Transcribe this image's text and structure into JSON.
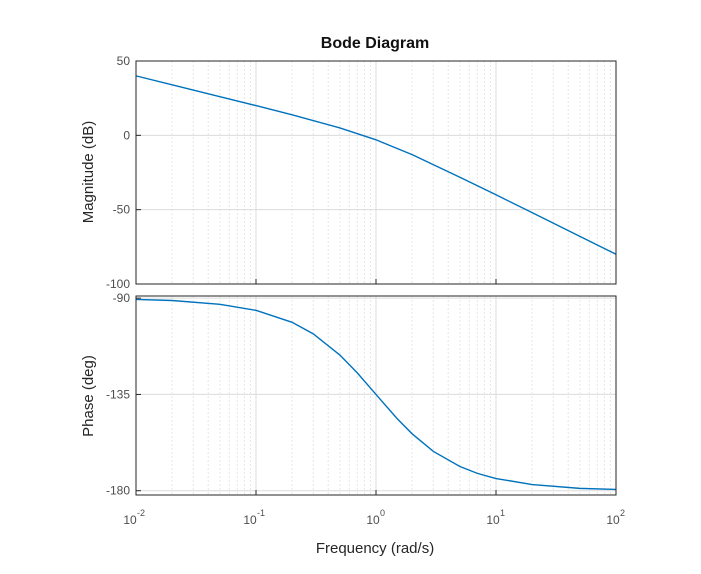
{
  "chart_data": [
    {
      "type": "line",
      "title": "Bode Diagram",
      "xlabel": "",
      "ylabel": "Magnitude (dB)",
      "xscale": "log",
      "xlim": [
        0.01,
        100
      ],
      "ylim": [
        -100,
        50
      ],
      "yticks": [
        "50",
        "0",
        "-50",
        "-100"
      ],
      "grid": true,
      "series": [
        {
          "x": [
            0.01,
            0.02,
            0.05,
            0.1,
            0.2,
            0.5,
            1,
            2,
            5,
            10,
            20,
            50,
            100
          ],
          "y": [
            40,
            34,
            26,
            20,
            13.8,
            5,
            -3,
            -13,
            -28.2,
            -40,
            -52,
            -68,
            -80
          ]
        }
      ]
    },
    {
      "type": "line",
      "title": "",
      "xlabel": "Frequency  (rad/s)",
      "ylabel": "Phase (deg)",
      "xscale": "log",
      "xlim": [
        0.01,
        100
      ],
      "ylim": [
        -182,
        -89
      ],
      "xticks": [
        "10",
        "10",
        "10",
        "10",
        "10"
      ],
      "xtick_exponents": [
        "-2",
        "-1",
        "0",
        "1",
        "2"
      ],
      "yticks": [
        "-90",
        "-135",
        "-180"
      ],
      "grid": true,
      "series": [
        {
          "x": [
            0.01,
            0.02,
            0.05,
            0.1,
            0.2,
            0.3,
            0.5,
            0.7,
            1,
            1.5,
            2,
            3,
            5,
            7,
            10,
            20,
            50,
            100
          ],
          "y": [
            -90.6,
            -91.1,
            -92.9,
            -95.7,
            -101.3,
            -106.7,
            -116.6,
            -125,
            -135,
            -146.3,
            -153.4,
            -161.6,
            -168.7,
            -171.9,
            -174.3,
            -177.1,
            -178.9,
            -179.4
          ]
        }
      ]
    }
  ],
  "colors": {
    "line": "#0072BD"
  }
}
